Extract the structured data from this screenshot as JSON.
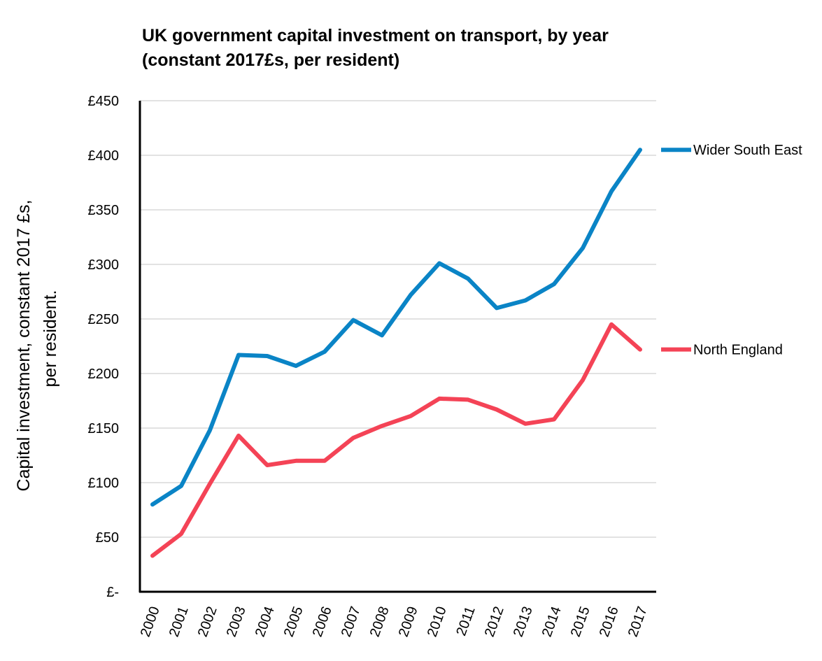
{
  "chart_data": {
    "type": "line",
    "title_lines": [
      "UK government capital investment on transport, by year",
      "(constant 2017£s, per resident)"
    ],
    "xlabel": "",
    "ylabel_lines": [
      "Capital investment, constant 2017 £s,",
      "per resident."
    ],
    "categories": [
      "2000",
      "2001",
      "2002",
      "2003",
      "2004",
      "2005",
      "2006",
      "2007",
      "2008",
      "2009",
      "2010",
      "2011",
      "2012",
      "2013",
      "2014",
      "2015",
      "2016",
      "2017"
    ],
    "ylim": [
      0,
      450
    ],
    "y_ticks": [
      {
        "value": 0,
        "label": "£-"
      },
      {
        "value": 50,
        "label": "£50"
      },
      {
        "value": 100,
        "label": "£100"
      },
      {
        "value": 150,
        "label": "£150"
      },
      {
        "value": 200,
        "label": "£200"
      },
      {
        "value": 250,
        "label": "£250"
      },
      {
        "value": 300,
        "label": "£300"
      },
      {
        "value": 350,
        "label": "£350"
      },
      {
        "value": 400,
        "label": "£400"
      },
      {
        "value": 450,
        "label": "£450"
      }
    ],
    "grid": true,
    "legend": "end-of-line labels at right",
    "series": [
      {
        "name": "Wider South East",
        "color": "#0A84C6",
        "values": [
          80,
          97,
          148,
          217,
          216,
          207,
          220,
          249,
          235,
          272,
          301,
          287,
          260,
          267,
          282,
          315,
          367,
          405
        ]
      },
      {
        "name": "North England",
        "color": "#F44356",
        "values": [
          33,
          53,
          99,
          143,
          116,
          120,
          120,
          141,
          152,
          161,
          177,
          176,
          167,
          154,
          158,
          194,
          245,
          222
        ]
      }
    ]
  }
}
